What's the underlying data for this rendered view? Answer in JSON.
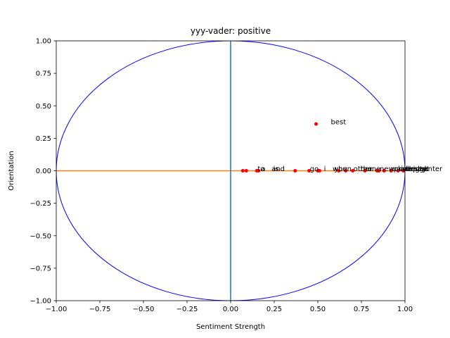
{
  "chart_data": {
    "type": "scatter",
    "title": "yyy-vader: positive",
    "xlabel": "Sentiment Strength",
    "ylabel": "Orientation",
    "xlim": [
      -1.0,
      1.0
    ],
    "ylim": [
      -1.0,
      1.0
    ],
    "xticks": [
      "−1.00",
      "−0.75",
      "−0.50",
      "−0.25",
      "0.00",
      "0.25",
      "0.50",
      "0.75",
      "1.00"
    ],
    "yticks": [
      "−1.00",
      "−0.75",
      "−0.50",
      "−0.25",
      "0.00",
      "0.25",
      "0.50",
      "0.75",
      "1.00"
    ],
    "xtick_values": [
      -1.0,
      -0.75,
      -0.5,
      -0.25,
      0.0,
      0.25,
      0.5,
      0.75,
      1.0
    ],
    "ytick_values": [
      -1.0,
      -0.75,
      -0.5,
      -0.25,
      0.0,
      0.25,
      0.5,
      0.75,
      1.0
    ],
    "grid": false,
    "colors": {
      "points": "#ff0000",
      "circle": "#0000ff",
      "horizontal_line": "#ff7f0e",
      "vertical_line": "#1f77b4"
    },
    "reference_circle": {
      "radius": 1.0
    },
    "points": [
      {
        "label": "best",
        "x": 0.49,
        "y": 0.36
      },
      {
        "label": "to",
        "x": 0.07,
        "y": 0.0
      },
      {
        "label": "a",
        "x": 0.09,
        "y": 0.0
      },
      {
        "label": "and",
        "x": 0.15,
        "y": 0.0
      },
      {
        "label": "is",
        "x": 0.16,
        "y": 0.0
      },
      {
        "label": "go",
        "x": 0.37,
        "y": 0.0
      },
      {
        "label": "i",
        "x": 0.45,
        "y": 0.0
      },
      {
        "label": "when",
        "x": 0.5,
        "y": 0.0
      },
      {
        "label": "you",
        "x": 0.51,
        "y": 0.0
      },
      {
        "label": "other",
        "x": 0.62,
        "y": 0.0
      },
      {
        "label": "the",
        "x": 0.66,
        "y": 0.0
      },
      {
        "label": "one",
        "x": 0.7,
        "y": 0.0
      },
      {
        "label": "new",
        "x": 0.77,
        "y": 0.0
      },
      {
        "label": "university",
        "x": 0.84,
        "y": 0.0
      },
      {
        "label": "place",
        "x": 0.85,
        "y": 0.0
      },
      {
        "label": "college",
        "x": 0.88,
        "y": 0.0
      },
      {
        "label": "bridge",
        "x": 0.92,
        "y": 0.0
      },
      {
        "label": "park",
        "x": 0.96,
        "y": 0.0
      },
      {
        "label": "eat",
        "x": 0.99,
        "y": 0.0
      },
      {
        "label": "center",
        "x": 1.0,
        "y": 0.0
      }
    ]
  }
}
